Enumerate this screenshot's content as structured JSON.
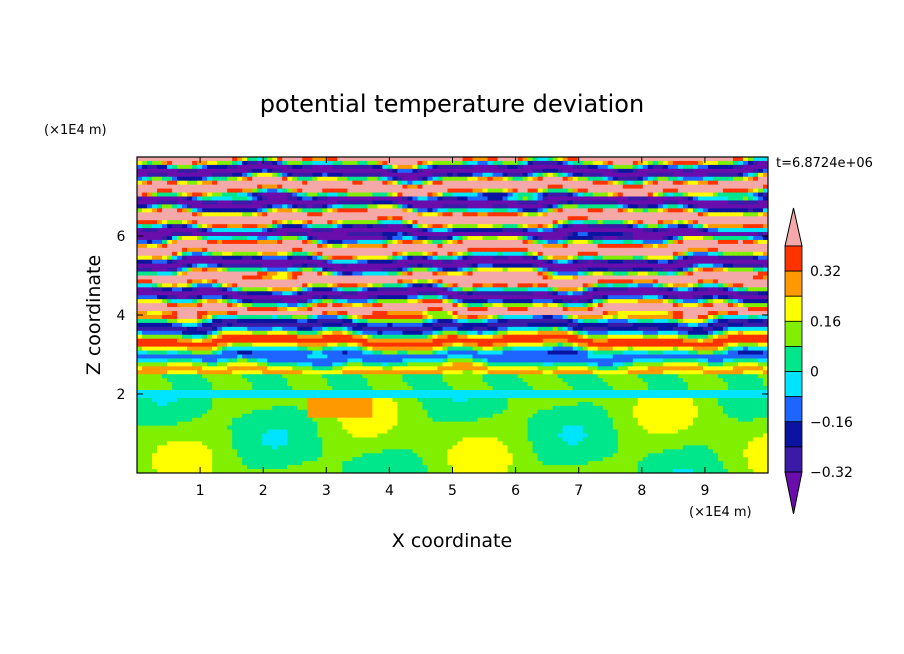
{
  "chart_data": {
    "type": "heatmap",
    "title": "potential temperature deviation",
    "xlabel": "X coordinate",
    "ylabel": "Z coordinate",
    "x_unit": "(×1E4 m)",
    "y_unit": "(×1E4 m)",
    "time_label": "t=6.8724e+06",
    "xlim": [
      0,
      10
    ],
    "ylim": [
      0,
      8
    ],
    "x_ticks": [
      "1",
      "2",
      "3",
      "4",
      "5",
      "6",
      "7",
      "8",
      "9"
    ],
    "y_ticks": [
      "2",
      "4",
      "6"
    ],
    "colorbar": {
      "levels": [
        -0.4,
        -0.32,
        -0.24,
        -0.16,
        -0.08,
        0,
        0.08,
        0.16,
        0.24,
        0.32,
        0.4
      ],
      "tick_labels": [
        "0.32",
        "0.16",
        "0",
        "−0.16",
        "−0.32"
      ],
      "colors": [
        "#6a0dad",
        "#3a1aa6",
        "#0a14a0",
        "#1e64ff",
        "#00e5ff",
        "#00e68a",
        "#80f000",
        "#ffff00",
        "#ff9900",
        "#ff3300",
        "#f4a9a8"
      ]
    },
    "regions": [
      {
        "z_range": [
          0,
          1.9
        ],
        "dominant": "#80f000",
        "secondary": "#00e68a",
        "note": "lower layer near zero"
      },
      {
        "z_range": [
          1.9,
          2.5
        ],
        "dominant": "#00e68a"
      },
      {
        "z_range": [
          2.5,
          8
        ],
        "pattern": "alternating horizontal bands",
        "colors": [
          "#f4a9a8",
          "#6a0dad"
        ]
      }
    ]
  }
}
